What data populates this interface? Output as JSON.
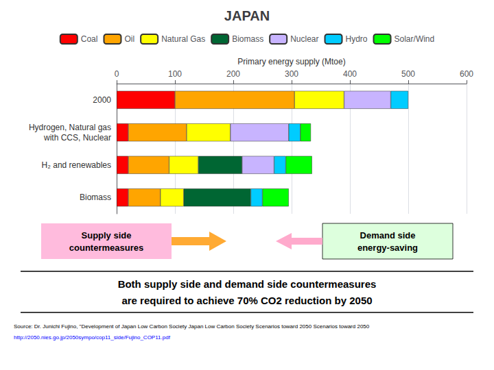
{
  "chart_data": {
    "type": "bar",
    "title": "JAPAN",
    "orientation": "horizontal",
    "stacked": true,
    "categories": [
      "2000",
      "Hydrogen, Natural gas\nwith CCS, Nuclear",
      "H₂ and renewables",
      "Biomass"
    ],
    "series": [
      {
        "name": "Coal",
        "color": "#ff0000",
        "values": [
          100,
          20,
          20,
          20
        ]
      },
      {
        "name": "Oil",
        "color": "#ffa500",
        "values": [
          205,
          100,
          70,
          55
        ]
      },
      {
        "name": "Natural Gas",
        "color": "#ffff00",
        "values": [
          85,
          75,
          50,
          40
        ]
      },
      {
        "name": "Biomass",
        "color": "#006633",
        "values": [
          null,
          null,
          75,
          115
        ]
      },
      {
        "name": "Nuclear",
        "color": "#c8b4ff",
        "values": [
          80,
          100,
          55,
          null
        ]
      },
      {
        "name": "Hydro",
        "color": "#00ccff",
        "values": [
          30,
          20,
          20,
          20
        ]
      },
      {
        "name": "Solar/Wind",
        "color": "#00ff00",
        "values": [
          null,
          18,
          45,
          45
        ]
      }
    ],
    "x_label": "Primary energy supply (Mtoe)",
    "xlim": [
      0,
      600
    ],
    "xticks": [
      0,
      100,
      200,
      300,
      400,
      500,
      600
    ],
    "grid": true,
    "legend": "top",
    "annotations": [
      "Supply side\ncountermeasures",
      "Demand side\nenergy-saving",
      "Both supply side and demand side countermeasures",
      "are required to achieve 70% CO2 reduction by 2050",
      "Source: Dr. Junichi Fujino, \"Development of Japan Low Carbon Society Japan Low Carbon Society Scenarios toward 2050 Scenarios toward 2050",
      "http://2050.nies.go.jp/2050sympo/cop11_side/Fujino_COP11.pdf"
    ]
  }
}
